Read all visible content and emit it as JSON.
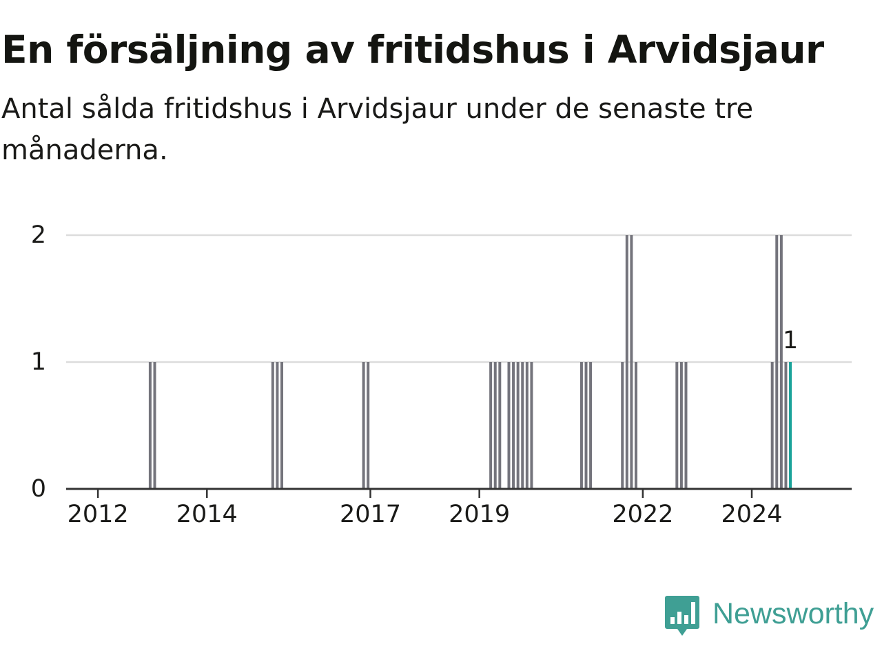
{
  "header": {
    "title": "En försäljning av fritidshus i Arvidsjaur",
    "subtitle": "Antal sålda fritidshus i Arvidsjaur under de senaste tre månaderna."
  },
  "brand": {
    "name": "Newsworthy",
    "color": "#3f9f94",
    "icon": "newsworthy-logo-icon"
  },
  "colors": {
    "bar": "#74747c",
    "highlight": "#1aa39a",
    "grid": "#dcdcdc",
    "axis": "#333333",
    "text": "#1a1a18"
  },
  "chart_data": {
    "type": "bar",
    "title": "En försäljning av fritidshus i Arvidsjaur",
    "subtitle": "Antal sålda fritidshus i Arvidsjaur under de senaste tre månaderna.",
    "xlabel": "",
    "ylabel": "",
    "ylim": [
      0,
      2
    ],
    "yticks": [
      0,
      1,
      2
    ],
    "xlim": [
      "2011-06",
      "2025-11"
    ],
    "xticks": [
      "2012",
      "2014",
      "2017",
      "2019",
      "2022",
      "2024"
    ],
    "grid": true,
    "legend": "none",
    "bar_period": "month",
    "data_label": "1",
    "bars": [
      {
        "date": "2012-12",
        "value": 1
      },
      {
        "date": "2013-01",
        "value": 1
      },
      {
        "date": "2015-03",
        "value": 1
      },
      {
        "date": "2015-04",
        "value": 1
      },
      {
        "date": "2015-05",
        "value": 1
      },
      {
        "date": "2016-11",
        "value": 1
      },
      {
        "date": "2016-12",
        "value": 1
      },
      {
        "date": "2019-03",
        "value": 1
      },
      {
        "date": "2019-04",
        "value": 1
      },
      {
        "date": "2019-05",
        "value": 1
      },
      {
        "date": "2019-07",
        "value": 1
      },
      {
        "date": "2019-08",
        "value": 1
      },
      {
        "date": "2019-09",
        "value": 1
      },
      {
        "date": "2019-10",
        "value": 1
      },
      {
        "date": "2019-11",
        "value": 1
      },
      {
        "date": "2019-12",
        "value": 1
      },
      {
        "date": "2020-11",
        "value": 1
      },
      {
        "date": "2020-12",
        "value": 1
      },
      {
        "date": "2021-01",
        "value": 1
      },
      {
        "date": "2021-08",
        "value": 1
      },
      {
        "date": "2021-09",
        "value": 2
      },
      {
        "date": "2021-10",
        "value": 2
      },
      {
        "date": "2021-11",
        "value": 1
      },
      {
        "date": "2022-08",
        "value": 1
      },
      {
        "date": "2022-09",
        "value": 1
      },
      {
        "date": "2022-10",
        "value": 1
      },
      {
        "date": "2024-05",
        "value": 1
      },
      {
        "date": "2024-06",
        "value": 2
      },
      {
        "date": "2024-07",
        "value": 2
      },
      {
        "date": "2024-08",
        "value": 1
      },
      {
        "date": "2024-09",
        "value": 1,
        "highlight": true
      }
    ]
  }
}
